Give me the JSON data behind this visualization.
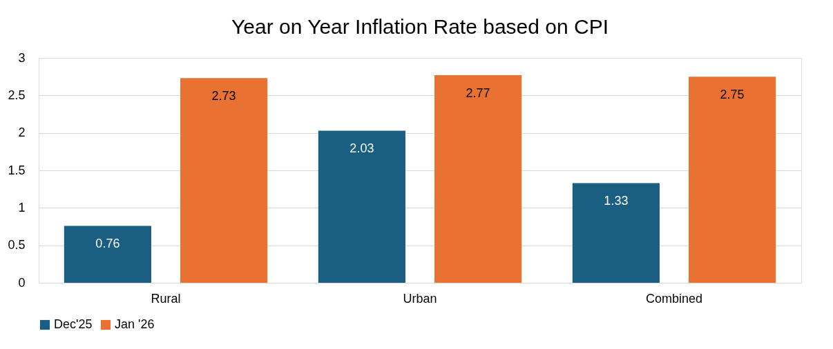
{
  "chart_data": {
    "type": "bar",
    "title": "Year on Year Inflation Rate based on CPI",
    "categories": [
      "Rural",
      "Urban",
      "Combined"
    ],
    "series": [
      {
        "name": "Dec'25",
        "color": "#1a5f82",
        "values": [
          0.76,
          2.03,
          1.33
        ]
      },
      {
        "name": "Jan '26",
        "color": "#e97132",
        "values": [
          2.73,
          2.77,
          2.75
        ]
      }
    ],
    "ylim": [
      0,
      3
    ],
    "yticks": [
      0,
      0.5,
      1,
      1.5,
      2,
      2.5,
      3
    ],
    "grid": "y",
    "legend": "bottom",
    "data_labels": true
  }
}
